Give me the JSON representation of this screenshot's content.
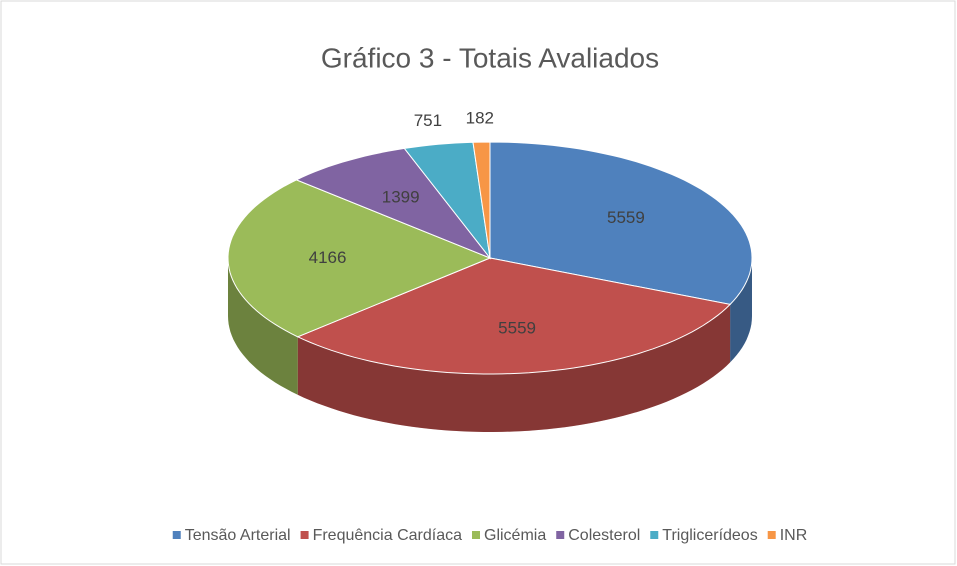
{
  "chart_data": {
    "type": "pie",
    "title": "Gráfico 3 - Totais Avaliados",
    "categories": [
      "Tensão Arterial",
      "Frequência Cardíaca",
      "Glicémia",
      "Colesterol",
      "Triglicerídeos",
      "INR"
    ],
    "values": [
      5559,
      5559,
      4166,
      1399,
      751,
      182
    ],
    "colors": [
      "#4f81bd",
      "#c0504d",
      "#9bbb59",
      "#8064a2",
      "#4bacc6",
      "#f79646"
    ],
    "legend": "bottom"
  }
}
